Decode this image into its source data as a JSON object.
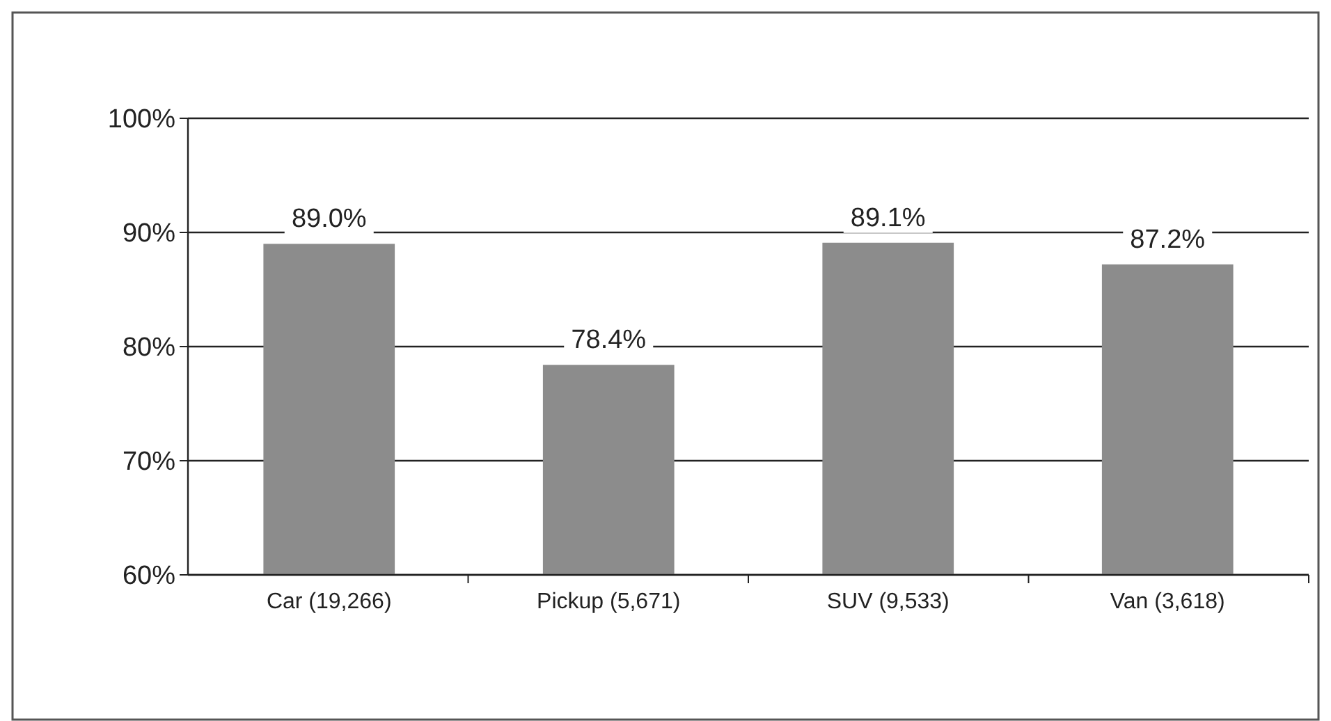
{
  "chart_data": {
    "type": "bar",
    "categories": [
      "Car (19,266)",
      "Pickup (5,671)",
      "SUV (9,533)",
      "Van (3,618)"
    ],
    "values": [
      89.0,
      78.4,
      89.1,
      87.2
    ],
    "value_labels": [
      "89.0%",
      "78.4%",
      "89.1%",
      "87.2%"
    ],
    "color": "#8c8c8c",
    "ylim": [
      60,
      100
    ],
    "yticks": [
      {
        "value": 60,
        "label": "60%"
      },
      {
        "value": 70,
        "label": "70%"
      },
      {
        "value": 80,
        "label": "80%"
      },
      {
        "value": 90,
        "label": "90%"
      },
      {
        "value": 100,
        "label": "100%"
      }
    ],
    "grid": "y"
  }
}
